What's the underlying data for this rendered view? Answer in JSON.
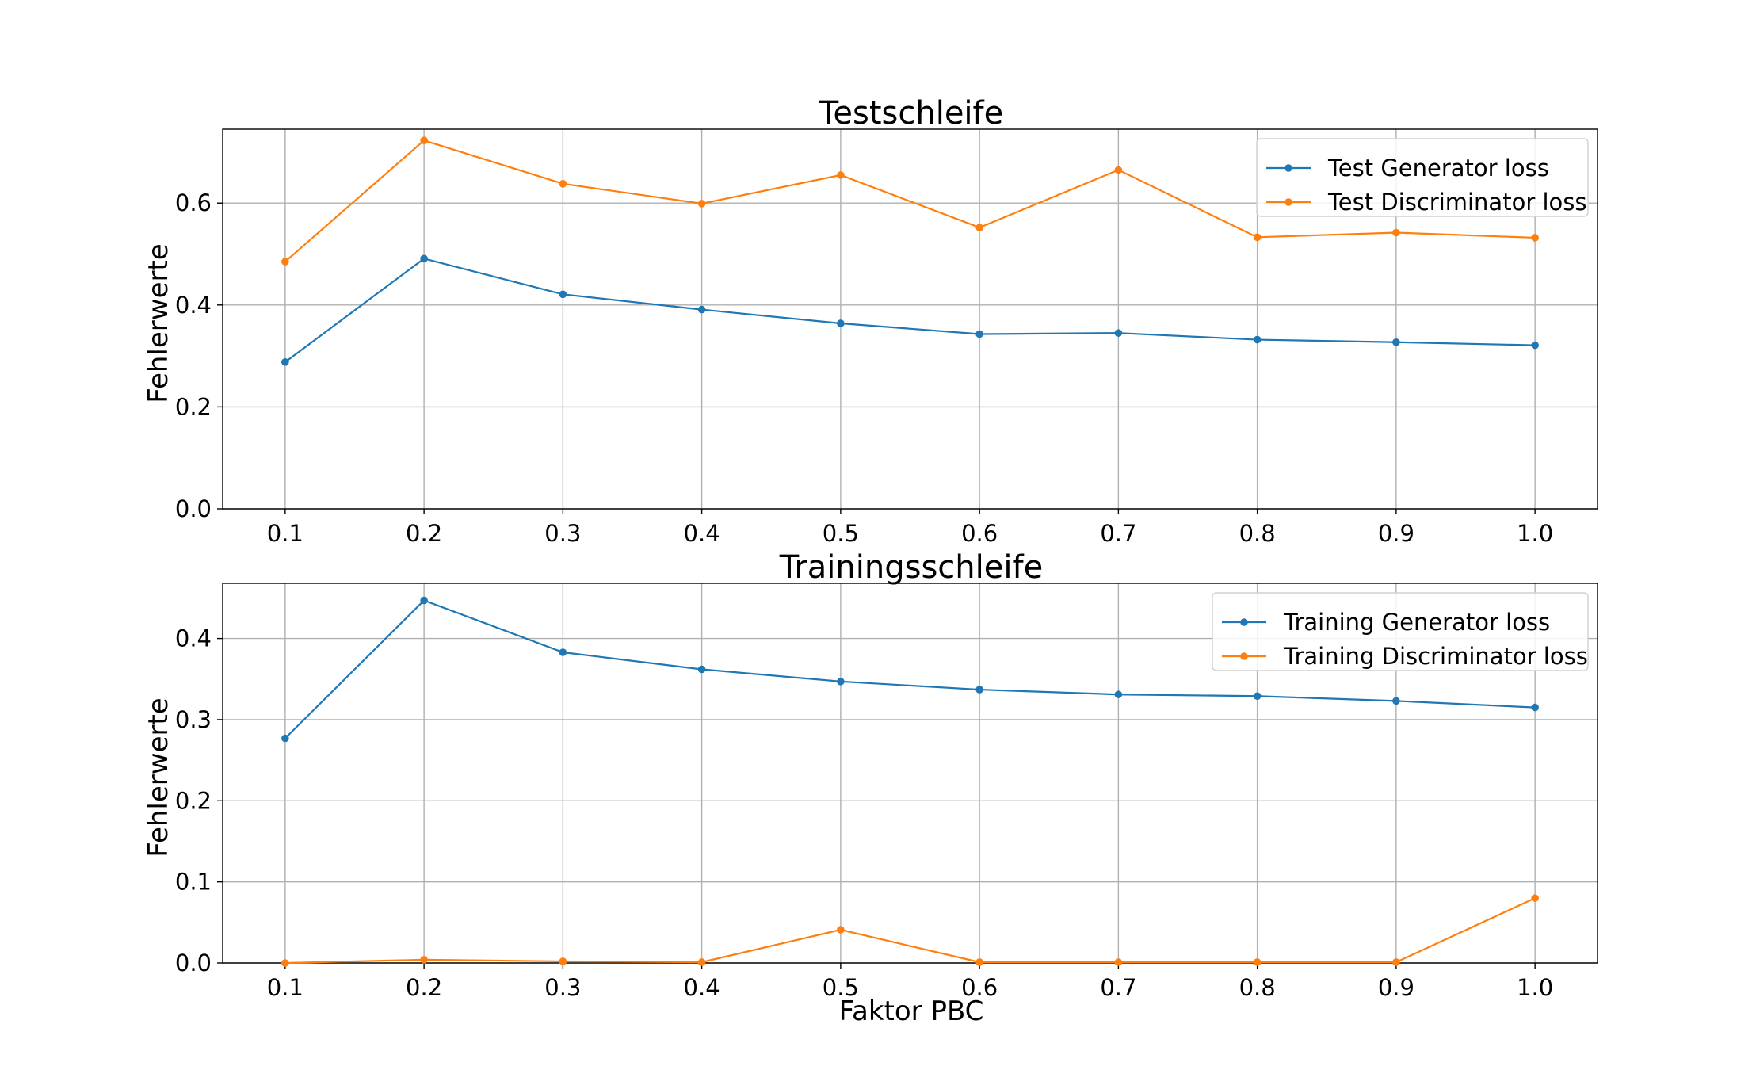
{
  "colors": {
    "series1": "#1f77b4",
    "series2": "#ff7f0e",
    "grid": "#b0b0b0"
  },
  "figure": {
    "xlabel": "Faktor PBC"
  },
  "chart_data": [
    {
      "type": "line",
      "title": "Testschleife",
      "xlabel": "",
      "ylabel": "Fehlerwerte",
      "x": [
        0.1,
        0.2,
        0.3,
        0.4,
        0.5,
        0.6,
        0.7,
        0.8,
        0.9,
        1.0
      ],
      "x_tick_labels": [
        "0.1",
        "0.2",
        "0.3",
        "0.4",
        "0.5",
        "0.6",
        "0.7",
        "0.8",
        "0.9",
        "1.0"
      ],
      "y_ticks": [
        0.0,
        0.2,
        0.4,
        0.6
      ],
      "y_tick_labels": [
        "0.0",
        "0.2",
        "0.4",
        "0.6"
      ],
      "ylim": [
        0.0,
        0.745
      ],
      "grid": true,
      "legend_position": "top-right",
      "series": [
        {
          "name": "Test Generator loss",
          "color": "#1f77b4",
          "values": [
            0.288,
            0.491,
            0.421,
            0.391,
            0.364,
            0.343,
            0.345,
            0.332,
            0.327,
            0.321
          ]
        },
        {
          "name": "Test Discriminator loss",
          "color": "#ff7f0e",
          "values": [
            0.485,
            0.723,
            0.638,
            0.599,
            0.655,
            0.552,
            0.665,
            0.533,
            0.542,
            0.532
          ]
        }
      ]
    },
    {
      "type": "line",
      "title": "Trainingsschleife",
      "xlabel": "Faktor PBC",
      "ylabel": "Fehlerwerte",
      "x": [
        0.1,
        0.2,
        0.3,
        0.4,
        0.5,
        0.6,
        0.7,
        0.8,
        0.9,
        1.0
      ],
      "x_tick_labels": [
        "0.1",
        "0.2",
        "0.3",
        "0.4",
        "0.5",
        "0.6",
        "0.7",
        "0.8",
        "0.9",
        "1.0"
      ],
      "y_ticks": [
        0.0,
        0.1,
        0.2,
        0.3,
        0.4
      ],
      "y_tick_labels": [
        "0.0",
        "0.1",
        "0.2",
        "0.3",
        "0.4"
      ],
      "ylim": [
        0.0,
        0.468
      ],
      "grid": true,
      "legend_position": "top-right",
      "series": [
        {
          "name": "Training Generator loss",
          "color": "#1f77b4",
          "values": [
            0.277,
            0.447,
            0.383,
            0.362,
            0.347,
            0.337,
            0.331,
            0.329,
            0.323,
            0.315
          ]
        },
        {
          "name": "Training Discriminator loss",
          "color": "#ff7f0e",
          "values": [
            0.0,
            0.004,
            0.002,
            0.001,
            0.041,
            0.001,
            0.001,
            0.001,
            0.001,
            0.08
          ]
        }
      ]
    }
  ]
}
